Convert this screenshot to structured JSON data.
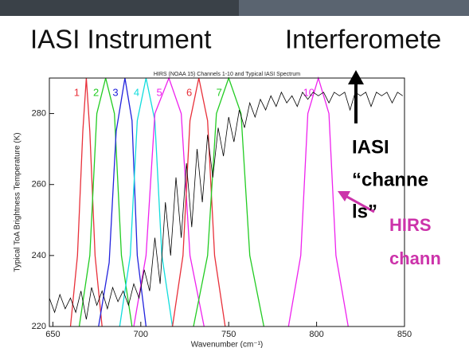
{
  "slide": {
    "title": "IASI Instrument",
    "subtitle": "Interferomete"
  },
  "annotations": {
    "iasi": [
      "IASI",
      "“channe",
      "ls”"
    ],
    "hirs": [
      "HIRS",
      "chann"
    ]
  },
  "chart_data": {
    "type": "line",
    "title": "HIRS (NOAA 15) Channels 1-10 and Typical IASI Spectrum",
    "x_label": "Wavenumber (cm⁻¹)",
    "y_label": "Typical ToA Brightness Temperature (K)",
    "xlim": [
      648,
      850
    ],
    "ylim": [
      220,
      290
    ],
    "xticks": [
      650,
      700,
      750,
      800,
      850
    ],
    "yticks": [
      220,
      240,
      260,
      280
    ],
    "series": [
      {
        "name": "1",
        "color": "#e8303a",
        "x": [
          660,
          664,
          667,
          669,
          671,
          674,
          678
        ],
        "values": [
          220,
          240,
          275,
          290,
          275,
          240,
          220
        ]
      },
      {
        "name": "2",
        "color": "#22cc22",
        "x": [
          665,
          671,
          675,
          680,
          685,
          689,
          695
        ],
        "values": [
          220,
          240,
          280,
          290,
          280,
          240,
          220
        ]
      },
      {
        "name": "3",
        "color": "#2222dd",
        "x": [
          676,
          682,
          686,
          691,
          695,
          698,
          703
        ],
        "values": [
          220,
          238,
          275,
          290,
          278,
          240,
          220
        ]
      },
      {
        "name": "4",
        "color": "#11dddd",
        "x": [
          688,
          694,
          698,
          703,
          708,
          712,
          718
        ],
        "values": [
          220,
          240,
          278,
          290,
          278,
          240,
          220
        ]
      },
      {
        "name": "5",
        "color": "#ee22ee",
        "x": [
          696,
          703,
          708,
          716,
          723,
          728,
          736
        ],
        "values": [
          220,
          240,
          280,
          290,
          280,
          240,
          220
        ]
      },
      {
        "name": "6",
        "color": "#e8303a",
        "x": [
          718,
          724,
          728,
          733,
          738,
          742,
          748
        ],
        "values": [
          220,
          240,
          278,
          290,
          278,
          240,
          220
        ]
      },
      {
        "name": "7",
        "color": "#22cc22",
        "x": [
          730,
          738,
          743,
          750,
          757,
          762,
          770
        ],
        "values": [
          220,
          240,
          280,
          290,
          280,
          240,
          220
        ]
      },
      {
        "name": "10",
        "color": "#ee22ee",
        "x": [
          784,
          791,
          795,
          801,
          807,
          811,
          818
        ],
        "values": [
          220,
          240,
          280,
          290,
          280,
          240,
          220
        ]
      },
      {
        "color": "#000000",
        "x": [
          648,
          651,
          654,
          657,
          660,
          663,
          666,
          669,
          672,
          675,
          678,
          681,
          684,
          687,
          690,
          693,
          696,
          699,
          702,
          705,
          708,
          711,
          714,
          717,
          720,
          723,
          726,
          729,
          732,
          735,
          738,
          741,
          744,
          747,
          750,
          753,
          756,
          759,
          762,
          765,
          768,
          771,
          774,
          777,
          780,
          783,
          786,
          789,
          792,
          795,
          798,
          801,
          804,
          807,
          810,
          813,
          816,
          819,
          822,
          825,
          828,
          831,
          834,
          837,
          840,
          843,
          846,
          849
        ],
        "values": [
          228,
          224,
          229,
          225,
          228,
          224,
          230,
          222,
          231,
          226,
          230,
          225,
          231,
          227,
          230,
          226,
          232,
          228,
          236,
          230,
          245,
          232,
          255,
          240,
          262,
          245,
          266,
          248,
          270,
          255,
          274,
          262,
          276,
          268,
          279,
          272,
          281,
          276,
          283,
          279,
          284,
          281,
          285,
          282,
          286,
          283,
          285,
          282,
          286,
          284,
          286,
          285,
          286,
          283,
          286,
          285,
          286,
          281,
          286,
          285,
          286,
          282,
          286,
          285,
          286,
          283,
          286,
          285
        ]
      }
    ]
  }
}
